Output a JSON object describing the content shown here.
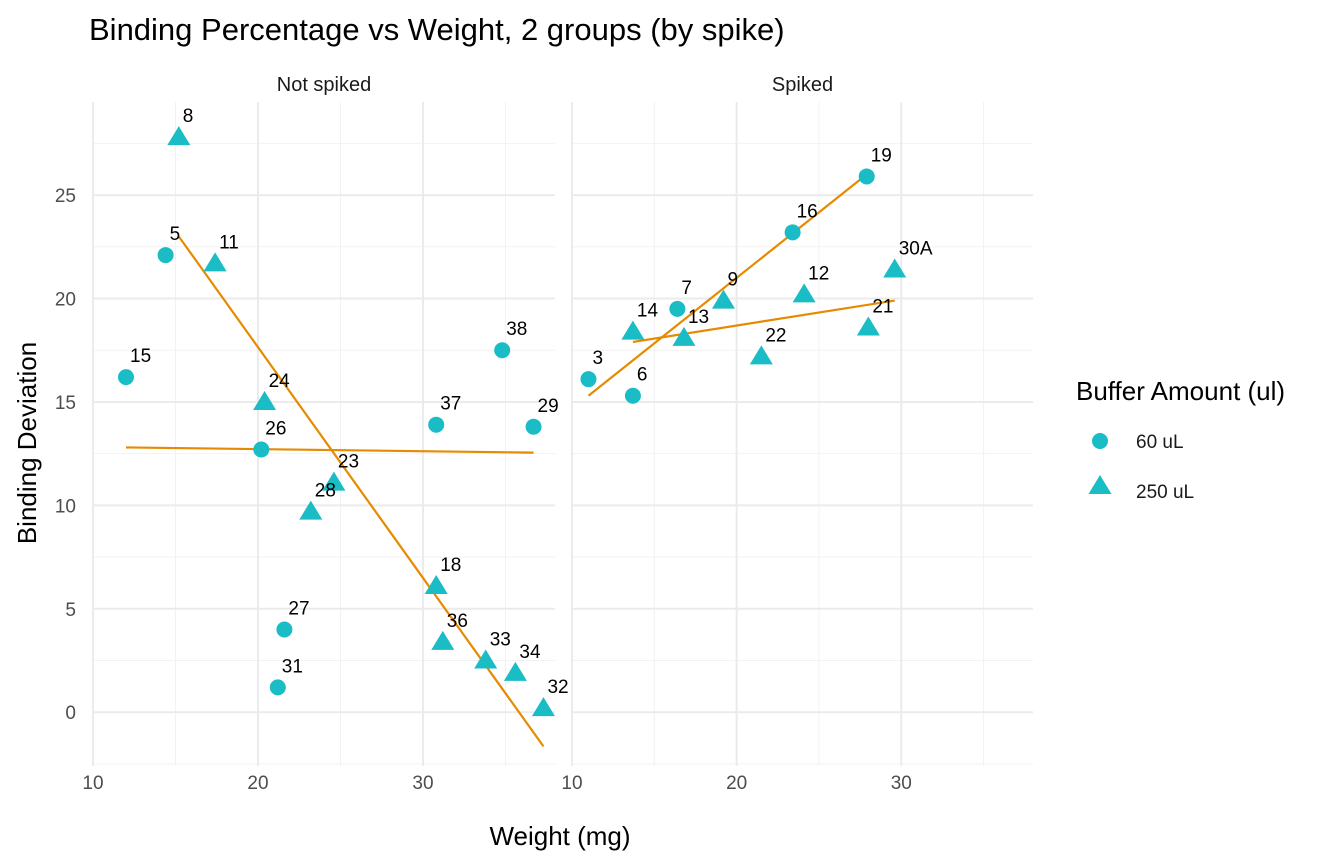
{
  "chart_data": {
    "type": "scatter",
    "title": "Binding Percentage vs Weight, 2 groups (by spike)",
    "xlabel": "Weight (mg)",
    "ylabel": "Binding Deviation",
    "xlim": [
      10,
      38
    ],
    "ylim": [
      -2.6,
      29.5
    ],
    "x_ticks": [
      10,
      20,
      30
    ],
    "y_ticks": [
      0,
      5,
      10,
      15,
      20,
      25
    ],
    "grid": true,
    "legend": {
      "title": "Buffer Amount (ul)",
      "position": "right",
      "entries": [
        {
          "label": "60 uL",
          "shape": "circle"
        },
        {
          "label": "250 uL",
          "shape": "triangle"
        }
      ]
    },
    "marker_color": "#1ABCC5",
    "fit_line_color": "#E68A00",
    "panels": [
      {
        "strip": "Not spiked",
        "points": [
          {
            "label": "15",
            "x": 12.0,
            "y": 16.2,
            "group": "60 uL"
          },
          {
            "label": "5",
            "x": 14.4,
            "y": 22.1,
            "group": "60 uL"
          },
          {
            "label": "26",
            "x": 20.2,
            "y": 12.7,
            "group": "60 uL"
          },
          {
            "label": "27",
            "x": 21.6,
            "y": 4.0,
            "group": "60 uL"
          },
          {
            "label": "31",
            "x": 21.2,
            "y": 1.2,
            "group": "60 uL"
          },
          {
            "label": "37",
            "x": 30.8,
            "y": 13.9,
            "group": "60 uL"
          },
          {
            "label": "38",
            "x": 34.8,
            "y": 17.5,
            "group": "60 uL"
          },
          {
            "label": "29",
            "x": 36.7,
            "y": 13.8,
            "group": "60 uL"
          },
          {
            "label": "8",
            "x": 15.2,
            "y": 27.8,
            "group": "250 uL"
          },
          {
            "label": "11",
            "x": 17.4,
            "y": 21.7,
            "group": "250 uL"
          },
          {
            "label": "24",
            "x": 20.4,
            "y": 15.0,
            "group": "250 uL"
          },
          {
            "label": "23",
            "x": 24.6,
            "y": 11.1,
            "group": "250 uL"
          },
          {
            "label": "28",
            "x": 23.2,
            "y": 9.7,
            "group": "250 uL"
          },
          {
            "label": "18",
            "x": 30.8,
            "y": 6.1,
            "group": "250 uL"
          },
          {
            "label": "36",
            "x": 31.2,
            "y": 3.4,
            "group": "250 uL"
          },
          {
            "label": "33",
            "x": 33.8,
            "y": 2.5,
            "group": "250 uL"
          },
          {
            "label": "34",
            "x": 35.6,
            "y": 1.9,
            "group": "250 uL"
          },
          {
            "label": "32",
            "x": 37.3,
            "y": 0.2,
            "group": "250 uL"
          }
        ],
        "fit_lines": [
          {
            "group": "60 uL",
            "x": [
              12.0,
              36.7
            ],
            "y": [
              12.8,
              12.55
            ]
          },
          {
            "group": "250 uL",
            "x": [
              15.2,
              37.3
            ],
            "y": [
              23.0,
              -1.65
            ]
          }
        ]
      },
      {
        "strip": "Spiked",
        "points": [
          {
            "label": "3",
            "x": 11.0,
            "y": 16.1,
            "group": "60 uL"
          },
          {
            "label": "6",
            "x": 13.7,
            "y": 15.3,
            "group": "60 uL"
          },
          {
            "label": "7",
            "x": 16.4,
            "y": 19.5,
            "group": "60 uL"
          },
          {
            "label": "16",
            "x": 23.4,
            "y": 23.2,
            "group": "60 uL"
          },
          {
            "label": "19",
            "x": 27.9,
            "y": 25.9,
            "group": "60 uL"
          },
          {
            "label": "14",
            "x": 13.7,
            "y": 18.4,
            "group": "250 uL"
          },
          {
            "label": "13",
            "x": 16.8,
            "y": 18.1,
            "group": "250 uL"
          },
          {
            "label": "9",
            "x": 19.2,
            "y": 19.9,
            "group": "250 uL"
          },
          {
            "label": "22",
            "x": 21.5,
            "y": 17.2,
            "group": "250 uL"
          },
          {
            "label": "12",
            "x": 24.1,
            "y": 20.2,
            "group": "250 uL"
          },
          {
            "label": "21",
            "x": 28.0,
            "y": 18.6,
            "group": "250 uL"
          },
          {
            "label": "30A",
            "x": 29.6,
            "y": 21.4,
            "group": "250 uL"
          }
        ],
        "fit_lines": [
          {
            "group": "60 uL",
            "x": [
              11.0,
              27.9
            ],
            "y": [
              15.3,
              26.0
            ]
          },
          {
            "group": "250 uL",
            "x": [
              13.7,
              29.6
            ],
            "y": [
              17.9,
              19.9
            ]
          }
        ]
      }
    ]
  }
}
